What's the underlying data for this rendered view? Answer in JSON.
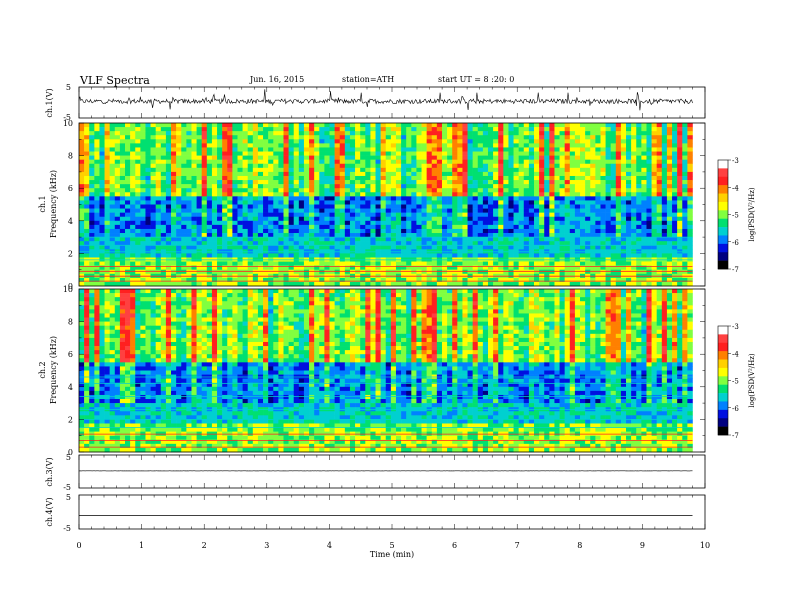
{
  "header": {
    "title": "VLF  Spectra",
    "date": "Jun. 16, 2015",
    "station": "station=ATH",
    "start": "start  UT =   8 :20: 0"
  },
  "colorbar": {
    "label": "log(PSD(V²/Hz)",
    "ticks": [
      "-3",
      "-4",
      "-5",
      "-6",
      "-7"
    ],
    "colors": [
      "#ffffff",
      "#ff4040",
      "#ff2020",
      "#ff8000",
      "#ffd000",
      "#ffff00",
      "#80ff40",
      "#00e070",
      "#00d0d0",
      "#0080ff",
      "#0010e0",
      "#000080",
      "#000000"
    ]
  },
  "chart_data": [
    {
      "type": "line",
      "name": "ch1",
      "ylabel": "ch.1(V)",
      "ylim": [
        -5,
        5
      ],
      "y_ticks": [
        "5",
        "-5"
      ],
      "x_range": [
        0,
        10
      ],
      "data_end": 9.8,
      "baseline": 0.4,
      "noise_amplitude": 1.5
    },
    {
      "type": "heatmap",
      "name": "ch1-spectrogram",
      "ylabel_channel": "ch.1",
      "ylabel": "Frequency  (kHz)",
      "ylim": [
        0,
        10
      ],
      "y_ticks": [
        "0",
        "2",
        "4",
        "6",
        "8",
        "10"
      ],
      "x_range": [
        0,
        10
      ],
      "data_end": 9.8,
      "zlim": [
        -7,
        -3
      ],
      "bands_khz": [
        0.3,
        0.6,
        0.9,
        1.2,
        1.6,
        2.1,
        2.5,
        3.0
      ]
    },
    {
      "type": "heatmap",
      "name": "ch2-spectrogram",
      "ylabel_channel": "ch.2",
      "ylabel": "Frequency  (kHz)",
      "ylim": [
        0,
        10
      ],
      "y_ticks": [
        "0",
        "2",
        "4",
        "6",
        "8",
        "10"
      ],
      "x_range": [
        0,
        10
      ],
      "data_end": 9.8,
      "zlim": [
        -7,
        -3
      ],
      "bands_khz": [
        0.3,
        0.7,
        1.1,
        1.5,
        2.0,
        2.6,
        3.4,
        4.2,
        4.6
      ]
    },
    {
      "type": "line",
      "name": "ch3",
      "ylabel": "ch.3(V)",
      "ylim": [
        -5,
        5
      ],
      "y_ticks": [
        "5",
        "-5"
      ],
      "x_range": [
        0,
        10
      ],
      "data_end": 9.8,
      "baseline": 0.2,
      "noise_amplitude": 0.05
    },
    {
      "type": "line",
      "name": "ch4",
      "ylabel": "ch.4(V)",
      "ylim": [
        -5,
        5
      ],
      "y_ticks": [
        "5",
        "-5"
      ],
      "x_range": [
        0,
        10
      ],
      "data_end": 9.8,
      "baseline": -1.0,
      "noise_amplitude": 0.0
    }
  ],
  "x_axis": {
    "label": "Time  (min)",
    "ticks": [
      "0",
      "1",
      "2",
      "3",
      "4",
      "5",
      "6",
      "7",
      "8",
      "9",
      "10"
    ]
  }
}
